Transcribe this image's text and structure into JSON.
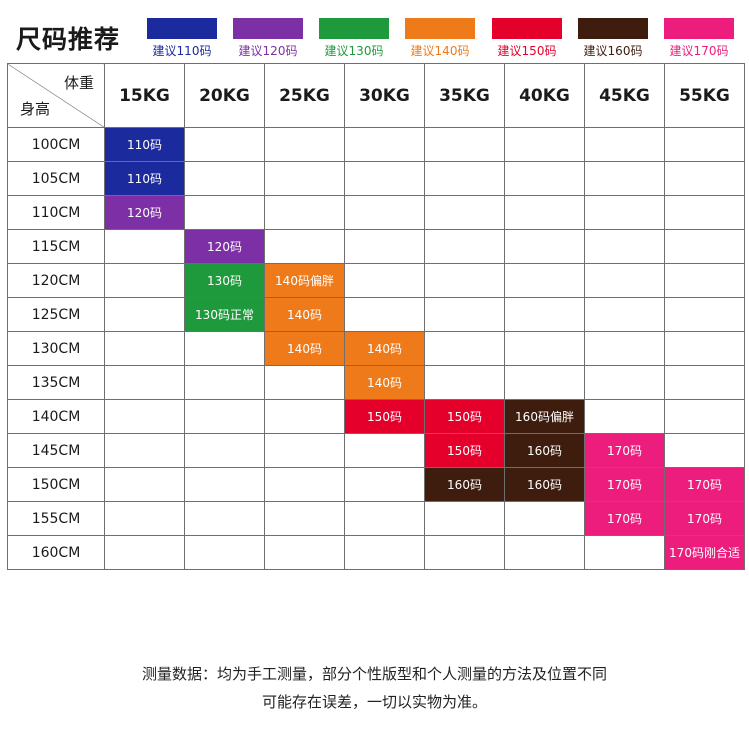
{
  "title": "尺码推荐",
  "legend": [
    {
      "label": "建议110码",
      "color": "#1b2a9c",
      "text_color": "#1b2a9c"
    },
    {
      "label": "建议120码",
      "color": "#7d2fa6",
      "text_color": "#7d2fa6"
    },
    {
      "label": "建议130码",
      "color": "#1e9a3c",
      "text_color": "#1e9a3c"
    },
    {
      "label": "建议140码",
      "color": "#ee7a1a",
      "text_color": "#ee7a1a"
    },
    {
      "label": "建议150码",
      "color": "#e4002b",
      "text_color": "#e4002b"
    },
    {
      "label": "建议160码",
      "color": "#3f1d0e",
      "text_color": "#3f1d0e"
    },
    {
      "label": "建议170码",
      "color": "#ec1d7d",
      "text_color": "#ec1d7d"
    }
  ],
  "table": {
    "corner_weight": "体重",
    "corner_height": "身高",
    "weights": [
      "15KG",
      "20KG",
      "25KG",
      "30KG",
      "35KG",
      "40KG",
      "45KG",
      "55KG"
    ],
    "rows": [
      {
        "height": "100CM",
        "cells": [
          {
            "text": "110码",
            "color": "#1b2a9c"
          },
          null,
          null,
          null,
          null,
          null,
          null,
          null
        ]
      },
      {
        "height": "105CM",
        "cells": [
          {
            "text": "110码",
            "color": "#1b2a9c"
          },
          null,
          null,
          null,
          null,
          null,
          null,
          null
        ]
      },
      {
        "height": "110CM",
        "cells": [
          {
            "text": "120码",
            "color": "#7d2fa6"
          },
          null,
          null,
          null,
          null,
          null,
          null,
          null
        ]
      },
      {
        "height": "115CM",
        "cells": [
          null,
          {
            "text": "120码",
            "color": "#7d2fa6"
          },
          null,
          null,
          null,
          null,
          null,
          null
        ]
      },
      {
        "height": "120CM",
        "cells": [
          null,
          {
            "text": "130码",
            "color": "#1e9a3c"
          },
          {
            "text": "140码偏胖",
            "color": "#ee7a1a"
          },
          null,
          null,
          null,
          null,
          null
        ]
      },
      {
        "height": "125CM",
        "cells": [
          null,
          {
            "text": "130码正常",
            "color": "#1e9a3c"
          },
          {
            "text": "140码",
            "color": "#ee7a1a"
          },
          null,
          null,
          null,
          null,
          null
        ]
      },
      {
        "height": "130CM",
        "cells": [
          null,
          null,
          {
            "text": "140码",
            "color": "#ee7a1a"
          },
          {
            "text": "140码",
            "color": "#ee7a1a"
          },
          null,
          null,
          null,
          null
        ]
      },
      {
        "height": "135CM",
        "cells": [
          null,
          null,
          null,
          {
            "text": "140码",
            "color": "#ee7a1a"
          },
          null,
          null,
          null,
          null
        ]
      },
      {
        "height": "140CM",
        "cells": [
          null,
          null,
          null,
          {
            "text": "150码",
            "color": "#e4002b"
          },
          {
            "text": "150码",
            "color": "#e4002b"
          },
          {
            "text": "160码偏胖",
            "color": "#3f1d0e"
          },
          null,
          null
        ]
      },
      {
        "height": "145CM",
        "cells": [
          null,
          null,
          null,
          null,
          {
            "text": "150码",
            "color": "#e4002b"
          },
          {
            "text": "160码",
            "color": "#3f1d0e"
          },
          {
            "text": "170码",
            "color": "#ec1d7d"
          },
          null
        ]
      },
      {
        "height": "150CM",
        "cells": [
          null,
          null,
          null,
          null,
          {
            "text": "160码",
            "color": "#3f1d0e"
          },
          {
            "text": "160码",
            "color": "#3f1d0e"
          },
          {
            "text": "170码",
            "color": "#ec1d7d"
          },
          {
            "text": "170码",
            "color": "#ec1d7d"
          }
        ]
      },
      {
        "height": "155CM",
        "cells": [
          null,
          null,
          null,
          null,
          null,
          null,
          {
            "text": "170码",
            "color": "#ec1d7d"
          },
          {
            "text": "170码",
            "color": "#ec1d7d"
          }
        ]
      },
      {
        "height": "160CM",
        "cells": [
          null,
          null,
          null,
          null,
          null,
          null,
          null,
          {
            "text": "170码刚合适",
            "color": "#ec1d7d"
          }
        ]
      }
    ]
  },
  "footnote": {
    "line1": "测量数据：均为手工测量，部分个性版型和个人测量的方法及位置不同",
    "line2": "可能存在误差，一切以实物为准。"
  }
}
